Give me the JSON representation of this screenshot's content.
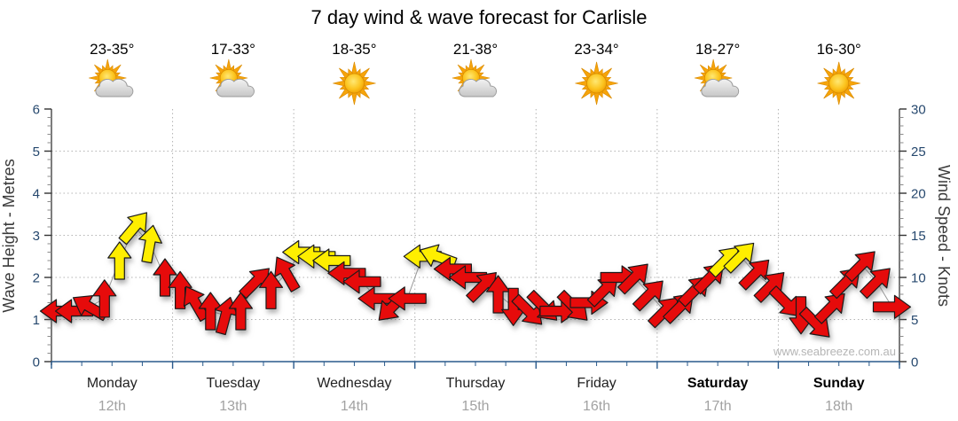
{
  "title": "7 day wind & wave forecast for Carlisle",
  "watermark": "www.seabreeze.com.au",
  "chart_data": {
    "type": "wind-arrow-timeseries",
    "grid": "dotted",
    "left_axis": {
      "label": "Wave Height - Metres",
      "min": 0,
      "max": 6,
      "step": 1
    },
    "right_axis": {
      "label": "Wind Speed - Knots",
      "min": 0,
      "max": 30,
      "step": 5
    },
    "colors": {
      "red": "#e60b0b",
      "yellow": "#ffee00",
      "outline": "#1a1a1a",
      "line": "#9a9a9a",
      "axis_blue": "#2a5a8c",
      "grid": "#b3b3b3"
    },
    "arrow_legend": "arrow y-position = wind speed in knots; red < 12 kn, yellow >= 12 kn; arrow points in wind direction",
    "days": [
      {
        "name": "Monday",
        "date": "12th",
        "temp": "23-35°",
        "icon": "sun-cloud",
        "bold": false,
        "wind": [
          {
            "kn": 6,
            "dir": 270,
            "color": "red"
          },
          {
            "kn": 6,
            "dir": 270,
            "color": "red"
          },
          {
            "kn": 6.5,
            "dir": 300,
            "color": "red"
          },
          {
            "kn": 7.5,
            "dir": 0,
            "color": "red"
          },
          {
            "kn": 12,
            "dir": 0,
            "color": "yellow"
          },
          {
            "kn": 16,
            "dir": 40,
            "color": "yellow"
          },
          {
            "kn": 14,
            "dir": 10,
            "color": "yellow"
          },
          {
            "kn": 10,
            "dir": 0,
            "color": "red"
          }
        ]
      },
      {
        "name": "Tuesday",
        "date": "13th",
        "temp": "17-33°",
        "icon": "sun-cloud",
        "bold": false,
        "wind": [
          {
            "kn": 8.5,
            "dir": 0,
            "color": "red"
          },
          {
            "kn": 7,
            "dir": 330,
            "color": "red"
          },
          {
            "kn": 6,
            "dir": 0,
            "color": "red"
          },
          {
            "kn": 5.5,
            "dir": 15,
            "color": "red"
          },
          {
            "kn": 6,
            "dir": 0,
            "color": "red"
          },
          {
            "kn": 9.5,
            "dir": 45,
            "color": "red"
          },
          {
            "kn": 8.5,
            "dir": 0,
            "color": "red"
          },
          {
            "kn": 10.5,
            "dir": 330,
            "color": "red"
          }
        ]
      },
      {
        "name": "Wednesday",
        "date": "14th",
        "temp": "18-35°",
        "icon": "sun",
        "bold": false,
        "wind": [
          {
            "kn": 13,
            "dir": 270,
            "color": "yellow"
          },
          {
            "kn": 12.5,
            "dir": 270,
            "color": "yellow"
          },
          {
            "kn": 12,
            "dir": 270,
            "color": "yellow"
          },
          {
            "kn": 10.5,
            "dir": 270,
            "color": "red"
          },
          {
            "kn": 9.5,
            "dir": 270,
            "color": "red"
          },
          {
            "kn": 7.5,
            "dir": 270,
            "color": "red"
          },
          {
            "kn": 6.5,
            "dir": 225,
            "color": "red"
          },
          {
            "kn": 7.5,
            "dir": 270,
            "color": "red"
          }
        ]
      },
      {
        "name": "Thursday",
        "date": "15th",
        "temp": "21-38°",
        "icon": "sun-cloud",
        "bold": false,
        "wind": [
          {
            "kn": 12.5,
            "dir": 270,
            "color": "yellow"
          },
          {
            "kn": 12.5,
            "dir": 290,
            "color": "yellow"
          },
          {
            "kn": 11,
            "dir": 270,
            "color": "red"
          },
          {
            "kn": 10,
            "dir": 270,
            "color": "red"
          },
          {
            "kn": 9,
            "dir": 45,
            "color": "red"
          },
          {
            "kn": 8,
            "dir": 0,
            "color": "red"
          },
          {
            "kn": 6.5,
            "dir": 180,
            "color": "red"
          },
          {
            "kn": 6,
            "dir": 135,
            "color": "red"
          }
        ]
      },
      {
        "name": "Friday",
        "date": "16th",
        "temp": "23-34°",
        "icon": "sun",
        "bold": false,
        "wind": [
          {
            "kn": 6.5,
            "dir": 135,
            "color": "red"
          },
          {
            "kn": 6,
            "dir": 90,
            "color": "red"
          },
          {
            "kn": 6.5,
            "dir": 135,
            "color": "red"
          },
          {
            "kn": 7,
            "dir": 90,
            "color": "red"
          },
          {
            "kn": 8.5,
            "dir": 45,
            "color": "red"
          },
          {
            "kn": 10,
            "dir": 90,
            "color": "red"
          },
          {
            "kn": 10,
            "dir": 45,
            "color": "red"
          },
          {
            "kn": 8,
            "dir": 45,
            "color": "red"
          }
        ]
      },
      {
        "name": "Saturday",
        "date": "17th",
        "temp": "18-27°",
        "icon": "sun-cloud",
        "bold": true,
        "wind": [
          {
            "kn": 6,
            "dir": 45,
            "color": "red"
          },
          {
            "kn": 6.5,
            "dir": 45,
            "color": "red"
          },
          {
            "kn": 8.5,
            "dir": 45,
            "color": "red"
          },
          {
            "kn": 10,
            "dir": 45,
            "color": "red"
          },
          {
            "kn": 12,
            "dir": 45,
            "color": "yellow"
          },
          {
            "kn": 12.5,
            "dir": 45,
            "color": "yellow"
          },
          {
            "kn": 10.5,
            "dir": 45,
            "color": "red"
          },
          {
            "kn": 9,
            "dir": 45,
            "color": "red"
          }
        ]
      },
      {
        "name": "Sunday",
        "date": "18th",
        "temp": "16-30°",
        "icon": "sun",
        "bold": true,
        "wind": [
          {
            "kn": 7,
            "dir": 135,
            "color": "red"
          },
          {
            "kn": 5.5,
            "dir": 180,
            "color": "red"
          },
          {
            "kn": 4.5,
            "dir": 135,
            "color": "red"
          },
          {
            "kn": 6.5,
            "dir": 45,
            "color": "red"
          },
          {
            "kn": 9.5,
            "dir": 45,
            "color": "red"
          },
          {
            "kn": 11.5,
            "dir": 45,
            "color": "red"
          },
          {
            "kn": 9.5,
            "dir": 45,
            "color": "red"
          },
          {
            "kn": 6.5,
            "dir": 90,
            "color": "red"
          }
        ]
      }
    ]
  }
}
